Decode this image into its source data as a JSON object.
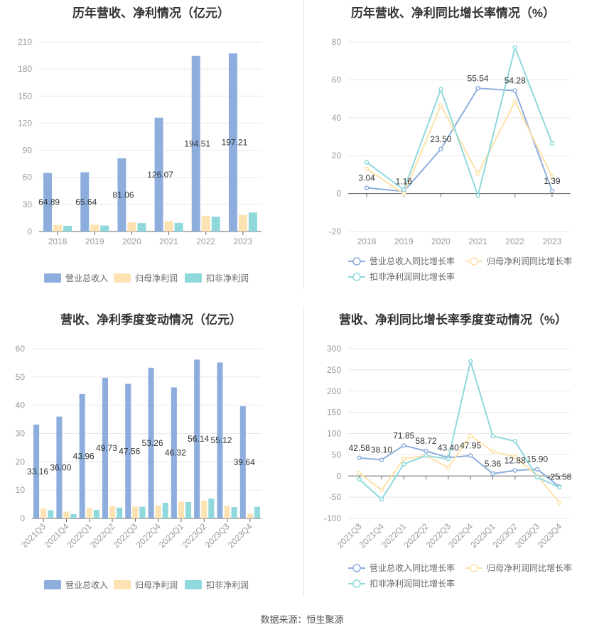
{
  "colors": {
    "revenue": "#8daedd",
    "net_profit": "#fde3b3",
    "deducted_profit": "#8fd8dc",
    "revenue_line": "#8daedd",
    "net_line": "#fde1a8",
    "deducted_line": "#8fd8dc",
    "axis_text": "#999999",
    "label_text": "#333333",
    "grid": "#e8e8e8"
  },
  "source": "数据来源：恒生聚源",
  "chart_data": [
    {
      "id": "annual-bar",
      "type": "bar",
      "title": "历年营收、净利情况（亿元）",
      "categories": [
        "2018",
        "2019",
        "2020",
        "2021",
        "2022",
        "2023"
      ],
      "series": [
        {
          "name": "营业总收入",
          "values": [
            64.89,
            65.64,
            81.06,
            126.07,
            194.51,
            197.21
          ]
        },
        {
          "name": "归母净利润",
          "values": [
            7.2,
            7.5,
            10.2,
            11.4,
            17.3,
            18.5
          ]
        },
        {
          "name": "扣非净利润",
          "values": [
            6.3,
            6.6,
            9.3,
            9.5,
            16.5,
            21.0
          ]
        }
      ],
      "data_labels": [
        "64.89",
        "65.64",
        "81.06",
        "126.07",
        "194.51",
        "197.21"
      ],
      "ylim": [
        0,
        210
      ],
      "yticks": [
        "0",
        "30",
        "60",
        "90",
        "120",
        "150",
        "180",
        "210"
      ],
      "legend": [
        "营业总收入",
        "归母净利润",
        "扣非净利润"
      ]
    },
    {
      "id": "annual-line",
      "type": "line",
      "title": "历年营收、净利同比增长率情况（%）",
      "categories": [
        "2018",
        "2019",
        "2020",
        "2021",
        "2022",
        "2023"
      ],
      "series": [
        {
          "name": "营业总收入同比增长率",
          "values": [
            3.04,
            1.16,
            23.5,
            55.54,
            54.28,
            1.39
          ]
        },
        {
          "name": "归母净利润同比增长率",
          "values": [
            13.0,
            0.0,
            46.5,
            10.5,
            48.5,
            9.0
          ]
        },
        {
          "name": "扣非净利润同比增长率",
          "values": [
            16.5,
            2.0,
            55.0,
            -1.0,
            77.0,
            26.5
          ]
        }
      ],
      "data_labels": [
        "3.04",
        "1.16",
        "23.50",
        "55.54",
        "54.28",
        "1.39"
      ],
      "ylim": [
        -20,
        80
      ],
      "yticks": [
        "-20",
        "0",
        "20",
        "40",
        "60",
        "80"
      ],
      "legend": [
        "营业总收入同比增长率",
        "归母净利润同比增长率",
        "扣非净利润同比增长率"
      ]
    },
    {
      "id": "quarter-bar",
      "type": "bar",
      "title": "营收、净利季度变动情况（亿元）",
      "categories": [
        "2021Q3",
        "2021Q4",
        "2022Q1",
        "2022Q2",
        "2022Q3",
        "2022Q4",
        "2023Q1",
        "2023Q2",
        "2023Q3",
        "2023Q4"
      ],
      "series": [
        {
          "name": "营业总收入",
          "values": [
            33.16,
            36.0,
            43.96,
            49.73,
            47.56,
            53.26,
            46.32,
            56.14,
            55.12,
            39.64
          ]
        },
        {
          "name": "归母净利润",
          "values": [
            3.5,
            2.4,
            3.7,
            4.4,
            4.2,
            4.6,
            5.9,
            6.3,
            4.5,
            1.7
          ]
        },
        {
          "name": "扣非净利润",
          "values": [
            2.9,
            1.5,
            3.0,
            3.8,
            4.1,
            5.5,
            5.8,
            7.0,
            4.0,
            4.1
          ]
        }
      ],
      "data_labels": [
        "33.16",
        "36.00",
        "43.96",
        "49.73",
        "47.56",
        "53.26",
        "46.32",
        "56.14",
        "55.12",
        "39.64"
      ],
      "ylim": [
        0,
        60
      ],
      "yticks": [
        "0",
        "10",
        "20",
        "30",
        "40",
        "50",
        "60"
      ],
      "legend": [
        "营业总收入",
        "归母净利润",
        "扣非净利润"
      ]
    },
    {
      "id": "quarter-line",
      "type": "line",
      "title": "营收、净利同比增长率季度变动情况（%）",
      "categories": [
        "2021Q3",
        "2021Q4",
        "2022Q1",
        "2022Q2",
        "2022Q3",
        "2022Q4",
        "2023Q1",
        "2023Q2",
        "2023Q3",
        "2023Q4"
      ],
      "series": [
        {
          "name": "营业总收入同比增长率",
          "values": [
            42.58,
            38.1,
            71.85,
            58.72,
            43.4,
            47.95,
            5.36,
            12.88,
            15.9,
            -25.58
          ]
        },
        {
          "name": "归母净利润同比增长率",
          "values": [
            7.0,
            -33.0,
            40.0,
            48.0,
            20.0,
            95.0,
            58.0,
            45.0,
            0.0,
            -63.0
          ]
        },
        {
          "name": "扣非净利润同比增长率",
          "values": [
            -8.0,
            -55.0,
            28.0,
            48.0,
            40.0,
            270.0,
            94.0,
            82.0,
            -3.0,
            -27.0
          ]
        }
      ],
      "data_labels": [
        "42.58",
        "38.10",
        "71.85",
        "58.72",
        "43.40",
        "47.95",
        "5.36",
        "12.88",
        "15.90",
        "-25.58"
      ],
      "ylim": [
        -100,
        300
      ],
      "yticks": [
        "-100",
        "-50",
        "0",
        "50",
        "100",
        "150",
        "200",
        "250",
        "300"
      ],
      "legend": [
        "营业总收入同比增长率",
        "归母净利润同比增长率",
        "扣非净利润同比增长率"
      ]
    }
  ]
}
